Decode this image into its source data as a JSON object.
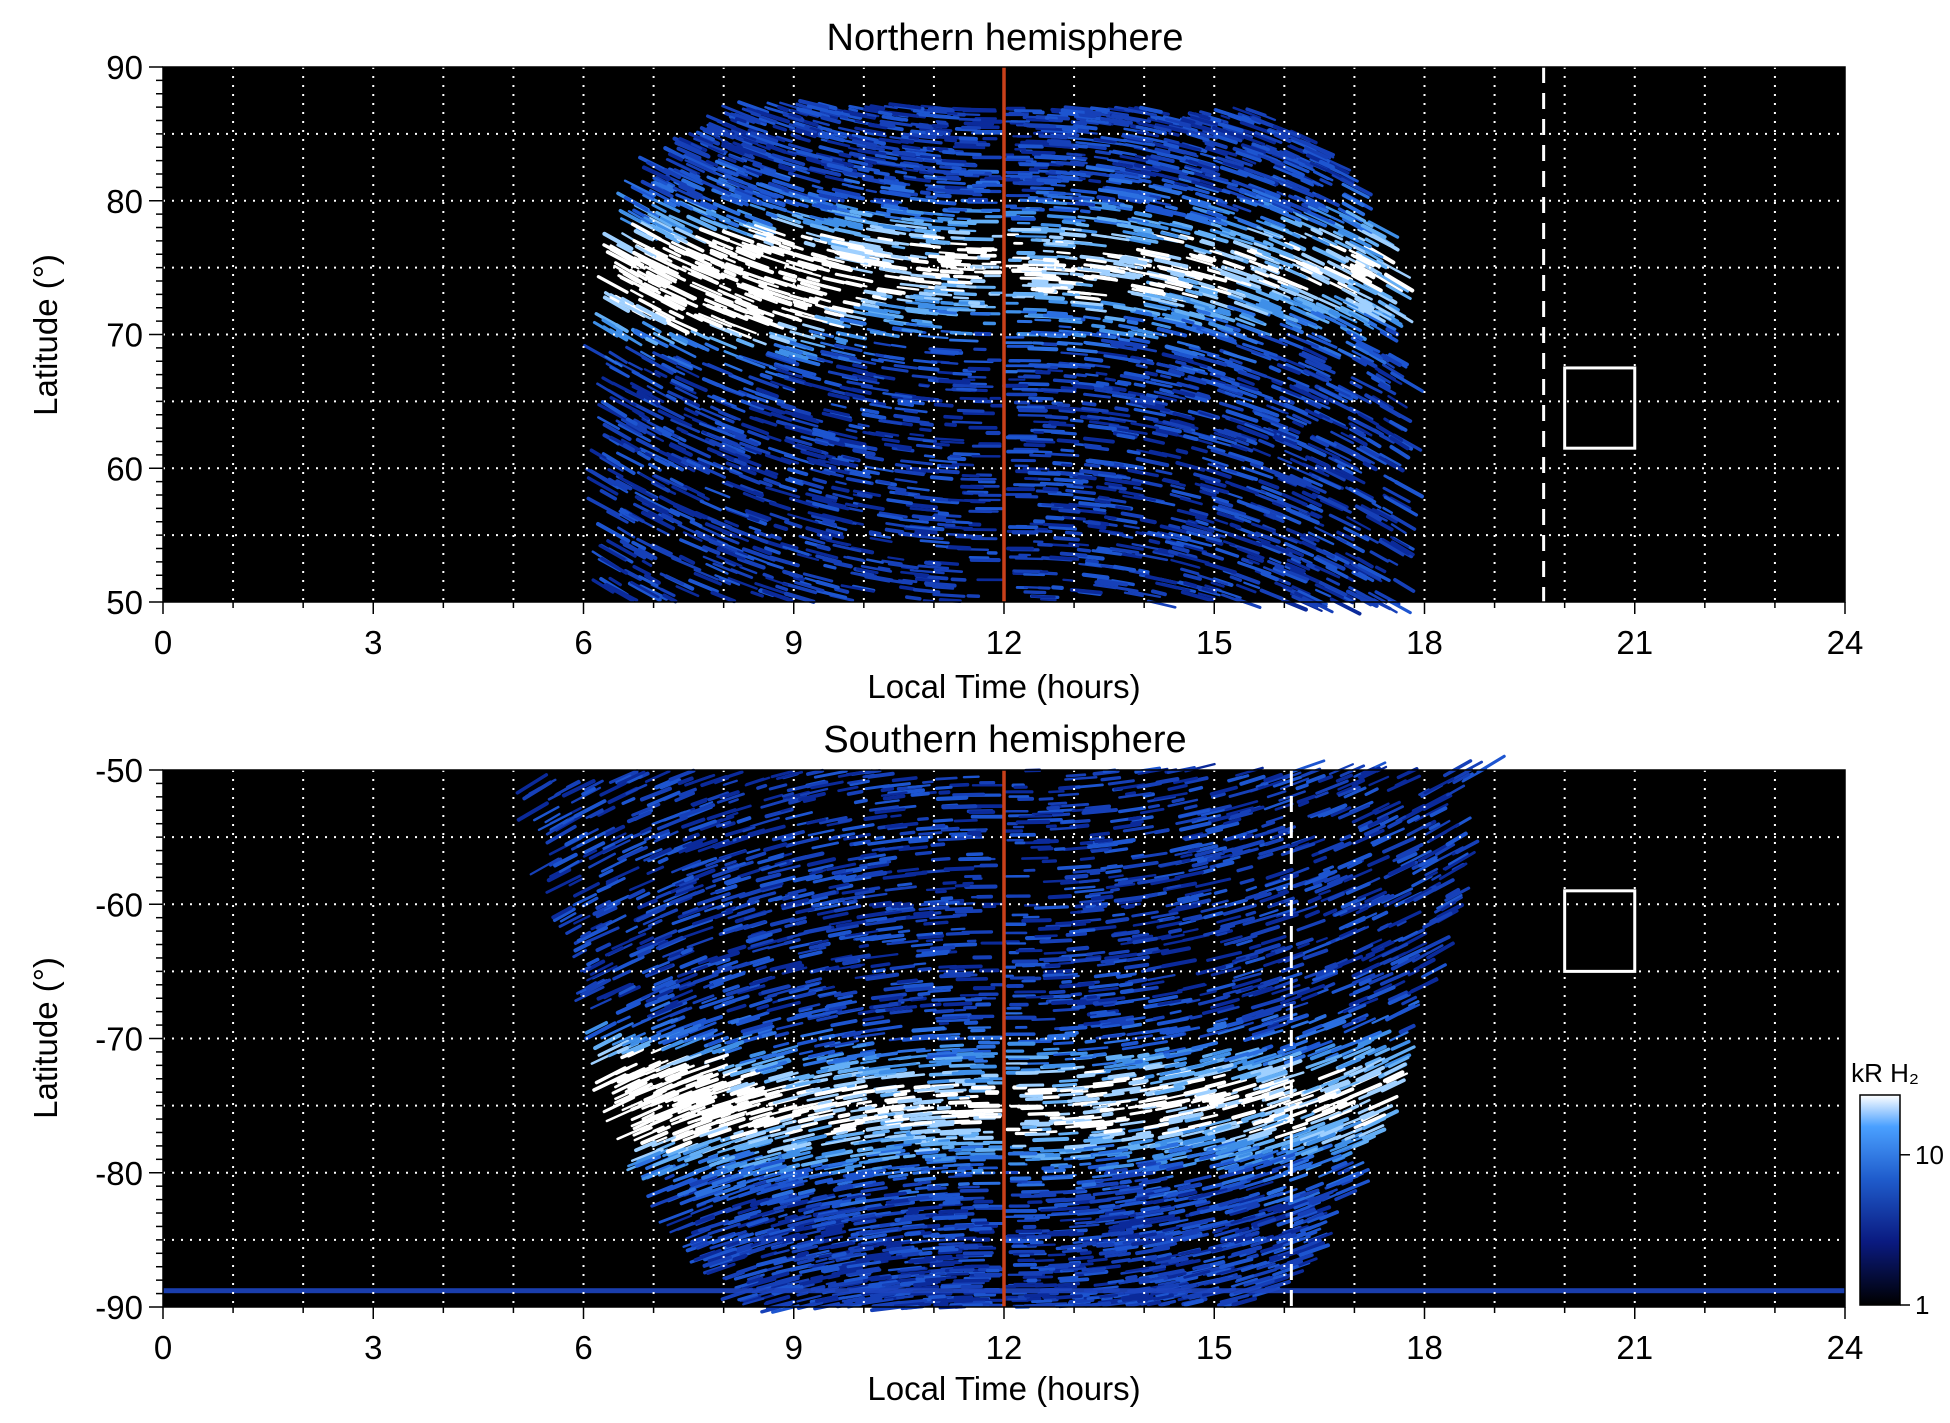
{
  "chart_data": [
    {
      "type": "heatmap",
      "title": "Northern hemisphere",
      "xlabel": "Local Time (hours)",
      "ylabel": "Latitude (°)",
      "xlim": [
        0,
        24
      ],
      "ylim": [
        50,
        90
      ],
      "x_ticks": [
        "0",
        "3",
        "6",
        "9",
        "12",
        "15",
        "18",
        "21",
        "24"
      ],
      "y_ticks": [
        "90",
        "80",
        "70",
        "60",
        "50"
      ],
      "grid": true,
      "noon_line_lt": 12,
      "dashed_line_lt": 19.7,
      "box": {
        "lt": [
          20,
          21
        ],
        "lat": [
          61.5,
          67.5
        ]
      },
      "emission_extent": {
        "lt": [
          6.4,
          17.6
        ],
        "lat_top": 87
      },
      "bright_oval": {
        "lat_ring": 75,
        "peak_lt": 8.3,
        "peak_lat": 72
      }
    },
    {
      "type": "heatmap",
      "title": "Southern hemisphere",
      "xlabel": "Local Time (hours)",
      "ylabel": "Latitude (°)",
      "xlim": [
        0,
        24
      ],
      "ylim": [
        -90,
        -50
      ],
      "x_ticks": [
        "0",
        "3",
        "6",
        "9",
        "12",
        "15",
        "18",
        "21",
        "24"
      ],
      "y_ticks": [
        "-50",
        "-60",
        "-70",
        "-80",
        "-90"
      ],
      "grid": true,
      "noon_line_lt": 12,
      "dashed_line_lt": 16.1,
      "box": {
        "lt": [
          20,
          21
        ],
        "lat": [
          -65,
          -59
        ]
      },
      "emission_extent": {
        "lt": [
          5.3,
          18.8
        ],
        "lat_top": -50
      },
      "bright_oval": {
        "lat_ring": -75,
        "peak_lt": 6.6,
        "peak_lat": -73.5
      },
      "colorbar": {
        "label": "kR H₂",
        "scale": "log",
        "range": [
          1,
          25
        ],
        "ticks": [
          "1",
          "10"
        ],
        "colors": [
          "#000000",
          "#0a1a80",
          "#1f5ccc",
          "#4aa0ff",
          "#ffffff"
        ]
      }
    }
  ],
  "colors": {
    "background": "#000000",
    "noon_line": "#c8401a",
    "grid": "#ffffff",
    "aurora_dim": "#1d4fc4",
    "aurora_mid": "#3f8fe8",
    "aurora_bright": "#ffffff"
  }
}
